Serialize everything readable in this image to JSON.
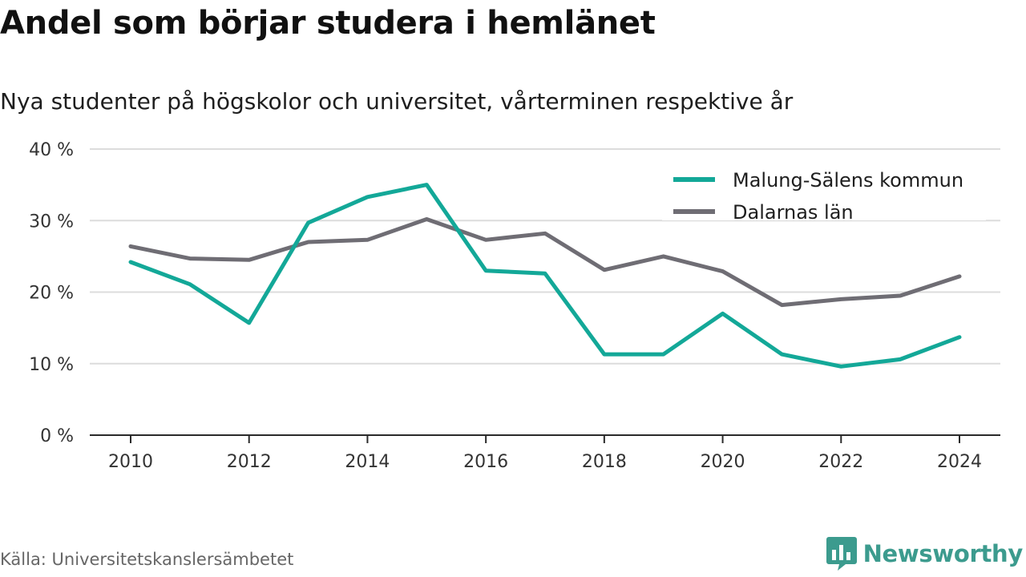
{
  "brand": {
    "name": "Newsworthy",
    "icon": "newsworthy-logo-icon",
    "color": "#3c9b8e"
  },
  "source": "Källa: Universitetskanslersämbetet",
  "chart_data": {
    "type": "line",
    "title": "Andel som börjar studera i hemlänet",
    "subtitle": "Nya studenter på högskolor och universitet, vårterminen respektive år",
    "xlabel": "",
    "ylabel": "",
    "x": [
      2010,
      2011,
      2012,
      2013,
      2014,
      2015,
      2016,
      2017,
      2018,
      2019,
      2020,
      2021,
      2022,
      2023,
      2024
    ],
    "xticks": [
      "2010",
      "2012",
      "2014",
      "2016",
      "2018",
      "2020",
      "2022",
      "2024"
    ],
    "ylim": [
      0,
      40
    ],
    "yticks": [
      0,
      10,
      20,
      30,
      40
    ],
    "ytick_labels": [
      "0 %",
      "10 %",
      "20 %",
      "30 %",
      "40 %"
    ],
    "grid": true,
    "legend_position": "top-right",
    "series": [
      {
        "name": "Malung-Sälens kommun",
        "color": "#13a898",
        "values": [
          24.2,
          21.1,
          15.7,
          29.7,
          33.3,
          35.0,
          23.0,
          22.6,
          11.3,
          11.3,
          17.0,
          11.3,
          9.6,
          10.6,
          13.7
        ]
      },
      {
        "name": "Dalarnas län",
        "color": "#6f6d74",
        "values": [
          26.4,
          24.7,
          24.5,
          27.0,
          27.3,
          30.2,
          27.3,
          28.2,
          23.1,
          25.0,
          22.9,
          18.2,
          19.0,
          19.5,
          22.2
        ]
      }
    ]
  }
}
